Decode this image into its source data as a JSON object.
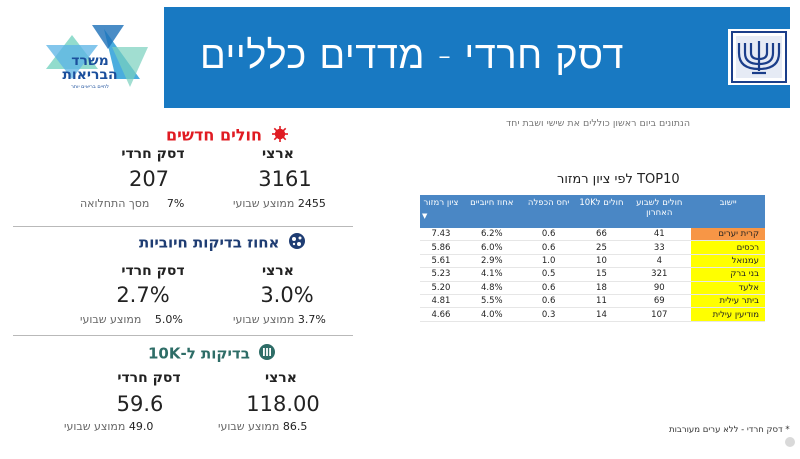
{
  "header": {
    "title": "דסק חרדי - מדדים כלליים",
    "moh_logo_line1": "משרד",
    "moh_logo_line2": "הבריאות",
    "moh_logo_tagline": "לחיים בריאים יותר"
  },
  "note_top": "הנתונים ביום ראשון כוללים את שישי ושבת יחד",
  "cards": {
    "new_patients": {
      "title": "חולים חדשים",
      "title_color": "#e01b22",
      "national": {
        "label": "ארצי",
        "value": "3161",
        "sub_value": "2455",
        "sub_label": "ממוצע שבועי"
      },
      "haredi": {
        "label": "דסק חרדי",
        "value": "207",
        "sub_value": "7%",
        "sub_label": "מסך התחלואה"
      }
    },
    "positive_rate": {
      "title": "אחוז בדיקות חיוביות",
      "title_color": "#1f3d73",
      "national": {
        "label": "ארצי",
        "value": "3.0%",
        "sub_value": "3.7%",
        "sub_label": "ממוצע שבועי"
      },
      "haredi": {
        "label": "דסק חרדי",
        "value": "2.7%",
        "sub_value": "5.0%",
        "sub_label": "ממוצע שבועי"
      }
    },
    "tests_10k": {
      "title": "בדיקות ל-10K",
      "title_color": "#2e6d67",
      "national": {
        "label": "ארצי",
        "value": "118.00",
        "sub_value": "86.5",
        "sub_label": "ממוצע שבועי"
      },
      "haredi": {
        "label": "דסק חרדי",
        "value": "59.6",
        "sub_value": "49.0",
        "sub_label": "ממוצע שבועי"
      }
    }
  },
  "top10": {
    "title": "TOP10 לפי ציון רמזור",
    "headers": {
      "score": "ציון רמזור",
      "positive": "אחוז חיוביים",
      "doubling": "יחס הכפלה",
      "per10k": "חולים ל10K",
      "weekly": "חולים לשבוע האחרון",
      "town": "יישוב"
    },
    "rows": [
      {
        "score": "7.43",
        "positive": "6.2%",
        "doubling": "0.6",
        "per10k": "66",
        "weekly": "41",
        "town": "קרית יערים",
        "color": "#f79646"
      },
      {
        "score": "5.86",
        "positive": "6.0%",
        "doubling": "0.6",
        "per10k": "25",
        "weekly": "33",
        "town": "רכסים",
        "color": "#ffff00"
      },
      {
        "score": "5.61",
        "positive": "2.9%",
        "doubling": "1.0",
        "per10k": "10",
        "weekly": "4",
        "town": "עמנואל",
        "color": "#ffff00"
      },
      {
        "score": "5.23",
        "positive": "4.1%",
        "doubling": "0.5",
        "per10k": "15",
        "weekly": "321",
        "town": "בני ברק",
        "color": "#ffff00"
      },
      {
        "score": "5.20",
        "positive": "4.8%",
        "doubling": "0.6",
        "per10k": "18",
        "weekly": "90",
        "town": "אלעד",
        "color": "#ffff00"
      },
      {
        "score": "4.81",
        "positive": "5.5%",
        "doubling": "0.6",
        "per10k": "11",
        "weekly": "69",
        "town": "ביתר עילית",
        "color": "#ffff00"
      },
      {
        "score": "4.66",
        "positive": "4.0%",
        "doubling": "0.3",
        "per10k": "14",
        "weekly": "107",
        "town": "מודיעין עילית",
        "color": "#ffff00"
      }
    ]
  },
  "footnote": "* דסק חרדי - ללא ערים מעורבות",
  "icons": [
    "virus-icon",
    "lab-test-icon",
    "tests-counter-icon",
    "star-of-david-logo-icon",
    "menorah-emblem-icon",
    "sort-desc-icon"
  ]
}
